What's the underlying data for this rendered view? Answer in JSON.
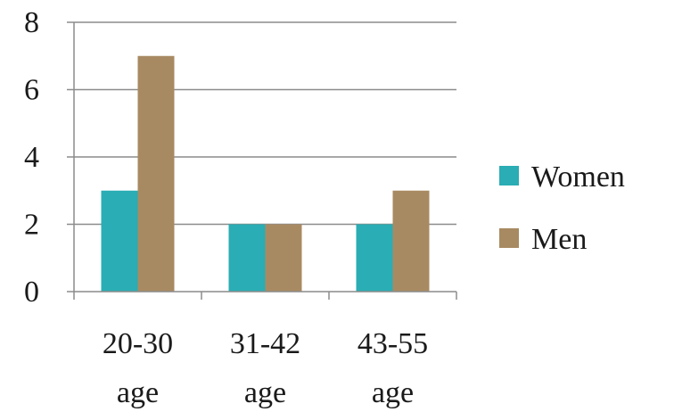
{
  "chart_data": {
    "type": "bar",
    "title": "",
    "xlabel": "",
    "ylabel": "",
    "categories": [
      [
        "20-30",
        "age"
      ],
      [
        "31-42",
        "age"
      ],
      [
        "43-55",
        "age"
      ]
    ],
    "series": [
      {
        "name": "Women",
        "values": [
          3,
          2,
          2
        ],
        "color": "#2aadb4"
      },
      {
        "name": "Men",
        "values": [
          7,
          2,
          3
        ],
        "color": "#a88a62"
      }
    ],
    "ylim": [
      0,
      8
    ],
    "yticks": [
      0,
      2,
      4,
      6,
      8
    ],
    "grid": true,
    "legend_position": "right",
    "gridline_color": "#8c8c8c",
    "axis_color": "#8c8c8c"
  }
}
